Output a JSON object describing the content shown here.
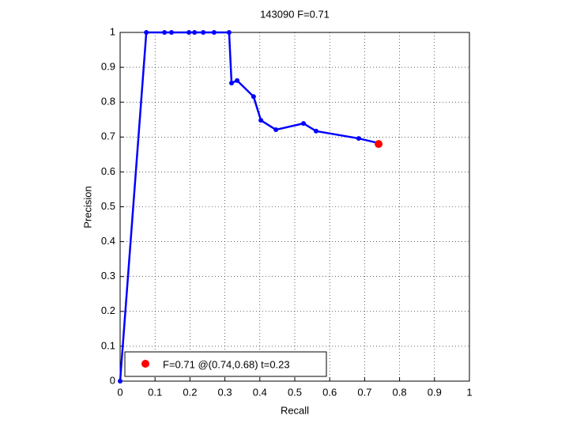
{
  "chart_data": {
    "type": "line",
    "title": "143090 F=0.71",
    "xlabel": "Recall",
    "ylabel": "Precision",
    "series": [
      {
        "color": "#0000ff",
        "x": [
          0,
          0.075,
          0.127,
          0.147,
          0.197,
          0.213,
          0.238,
          0.269,
          0.312,
          0.319,
          0.335,
          0.382,
          0.403,
          0.446,
          0.525,
          0.561,
          0.683,
          0.738
        ],
        "values": [
          0,
          1,
          1,
          1,
          1,
          1,
          1,
          1,
          1,
          0.855,
          0.862,
          0.816,
          0.748,
          0.721,
          0.739,
          0.717,
          0.696,
          0.683
        ]
      },
      {
        "name": "F=0.71 @(0.74,0.68) t=0.23",
        "color": "#ff0000",
        "x": [
          0.74
        ],
        "values": [
          0.68
        ]
      }
    ],
    "xlim": [
      0,
      1
    ],
    "xticks": [
      0,
      0.1,
      0.2,
      0.3,
      0.4,
      0.5,
      0.6,
      0.7,
      0.8,
      0.9,
      1
    ],
    "ylim": [
      0,
      1
    ],
    "yticks": [
      0,
      0.1,
      0.2,
      0.3,
      0.4,
      0.5,
      0.6,
      0.7,
      0.8,
      0.9,
      1
    ],
    "grid": true,
    "legend": "lower left"
  }
}
